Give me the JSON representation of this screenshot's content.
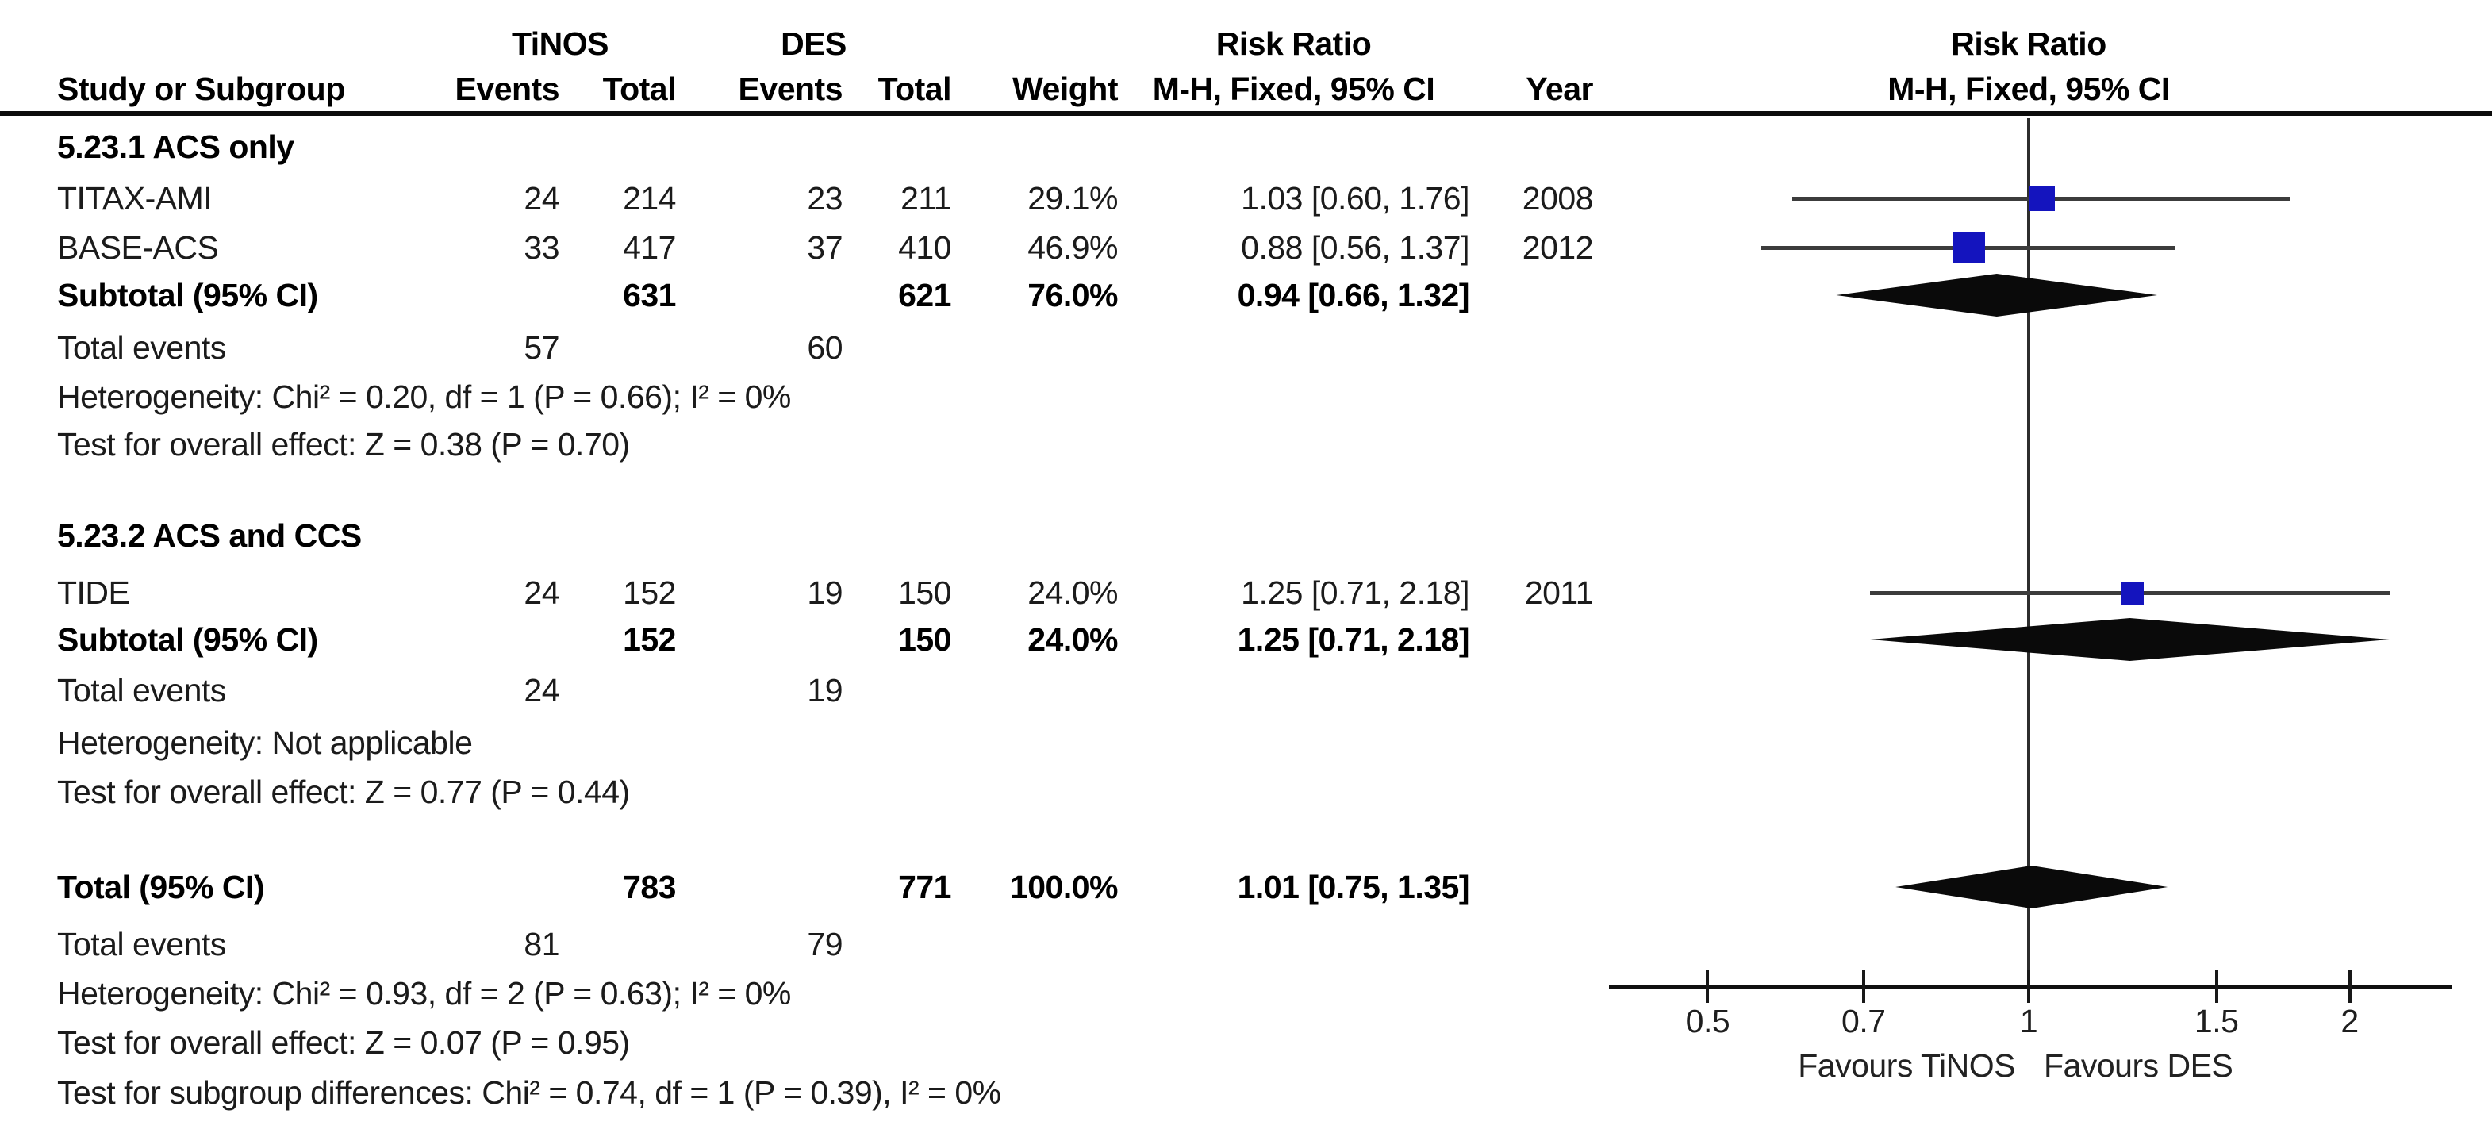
{
  "table": {
    "header": {
      "group1": "TiNOS",
      "group2": "DES",
      "study": "Study or Subgroup",
      "events": "Events",
      "total": "Total",
      "weight": "Weight",
      "effect_title": "Risk Ratio",
      "method": "M-H, Fixed, 95% CI",
      "year": "Year",
      "plot_title": "Risk Ratio",
      "plot_method": "M-H, Fixed, 95% CI"
    },
    "groups": [
      {
        "label": "5.23.1 ACS only",
        "studies": [
          {
            "name": "TITAX-AMI",
            "e1": "24",
            "t1": "214",
            "e2": "23",
            "t2": "211",
            "w": "29.1%",
            "rr": "1.03 [0.60, 1.76]",
            "year": "2008"
          },
          {
            "name": "BASE-ACS",
            "e1": "33",
            "t1": "417",
            "e2": "37",
            "t2": "410",
            "w": "46.9%",
            "rr": "0.88 [0.56, 1.37]",
            "year": "2012"
          }
        ],
        "subtotal": {
          "label": "Subtotal (95% CI)",
          "t1": "631",
          "t2": "621",
          "w": "76.0%",
          "rr": "0.94 [0.66, 1.32]"
        },
        "total_events": {
          "label": "Total events",
          "e1": "57",
          "e2": "60"
        },
        "heterogeneity": "Heterogeneity: Chi² = 0.20, df = 1 (P = 0.66); I² = 0%",
        "overall_effect": "Test for overall effect: Z = 0.38 (P = 0.70)"
      },
      {
        "label": "5.23.2 ACS and CCS",
        "studies": [
          {
            "name": "TIDE",
            "e1": "24",
            "t1": "152",
            "e2": "19",
            "t2": "150",
            "w": "24.0%",
            "rr": "1.25 [0.71, 2.18]",
            "year": "2011"
          }
        ],
        "subtotal": {
          "label": "Subtotal (95% CI)",
          "t1": "152",
          "t2": "150",
          "w": "24.0%",
          "rr": "1.25 [0.71, 2.18]"
        },
        "total_events": {
          "label": "Total events",
          "e1": "24",
          "e2": "19"
        },
        "heterogeneity": "Heterogeneity: Not applicable",
        "overall_effect": "Test for overall effect: Z = 0.77 (P = 0.44)"
      }
    ],
    "total_row": {
      "label": "Total (95% CI)",
      "t1": "783",
      "t2": "771",
      "w": "100.0%",
      "rr": "1.01 [0.75, 1.35]"
    },
    "total_events": {
      "label": "Total events",
      "e1": "81",
      "e2": "79"
    },
    "heterogeneity": "Heterogeneity: Chi² = 0.93, df = 2 (P = 0.63); I² = 0%",
    "overall_effect": "Test for overall effect: Z = 0.07 (P = 0.95)",
    "subgroup_diff": "Test for subgroup differences: Chi² = 0.74, df = 1 (P = 0.39), I² = 0%"
  },
  "chart_data": {
    "type": "forest",
    "effect_measure": "Risk Ratio",
    "method": "M-H, Fixed, 95% CI",
    "x_scale": "log",
    "x_ticks": [
      0.5,
      0.7,
      1,
      1.5,
      2
    ],
    "axis_range": [
      0.4,
      2.5
    ],
    "null_value": 1,
    "favours_left": "Favours TiNOS",
    "favours_right": "Favours DES",
    "rows": [
      {
        "id": "titax",
        "label": "TITAX-AMI",
        "subgroup": "5.23.1 ACS only",
        "type": "study",
        "est": 1.03,
        "lo": 0.6,
        "hi": 1.76,
        "weight_pct": 29.1,
        "year": 2008
      },
      {
        "id": "base",
        "label": "BASE-ACS",
        "subgroup": "5.23.1 ACS only",
        "type": "study",
        "est": 0.88,
        "lo": 0.56,
        "hi": 1.37,
        "weight_pct": 46.9,
        "year": 2012
      },
      {
        "id": "sub1",
        "label": "Subtotal (95% CI)",
        "subgroup": "5.23.1 ACS only",
        "type": "diamond",
        "est": 0.94,
        "lo": 0.66,
        "hi": 1.32
      },
      {
        "id": "tide",
        "label": "TIDE",
        "subgroup": "5.23.2 ACS and CCS",
        "type": "study",
        "est": 1.25,
        "lo": 0.71,
        "hi": 2.18,
        "weight_pct": 24.0,
        "year": 2011
      },
      {
        "id": "sub2",
        "label": "Subtotal (95% CI)",
        "subgroup": "5.23.2 ACS and CCS",
        "type": "diamond",
        "est": 1.25,
        "lo": 0.71,
        "hi": 2.18
      },
      {
        "id": "total",
        "label": "Total (95% CI)",
        "subgroup": null,
        "type": "diamond",
        "est": 1.01,
        "lo": 0.75,
        "hi": 1.35
      }
    ]
  }
}
